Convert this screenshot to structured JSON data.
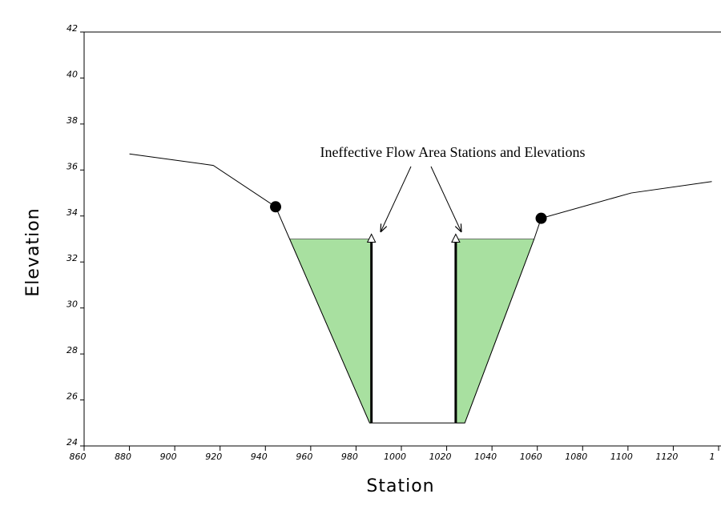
{
  "chart_data": {
    "type": "cross-section",
    "xlabel": "Station",
    "ylabel": "Elevation",
    "annotation": "Ineffective Flow Area Stations and Elevations",
    "xlim": [
      860,
      1140
    ],
    "ylim": [
      24,
      42
    ],
    "xticks": [
      860,
      880,
      900,
      920,
      940,
      960,
      980,
      1000,
      1020,
      1040,
      1060,
      1080,
      1100,
      1120,
      {
        "value": 1140,
        "label": "1"
      }
    ],
    "yticks": [
      24,
      26,
      28,
      30,
      32,
      34,
      36,
      38,
      40,
      42
    ],
    "ground": {
      "color": "#000000",
      "x": [
        880,
        917,
        944.5,
        950.7,
        986,
        1028,
        1058.6,
        1061.7,
        1101.4,
        1137
      ],
      "values": [
        36.7,
        36.2,
        34.4,
        33.0,
        25.0,
        25.0,
        33.0,
        33.9,
        35.0,
        35.5
      ]
    },
    "bank_stations": {
      "x": [
        944.5,
        1061.7
      ],
      "values": [
        34.4,
        33.9
      ]
    },
    "ineffective": {
      "color": "#a8e0a0",
      "x": [
        986.8,
        1024
      ],
      "values": [
        33.0,
        33.0
      ]
    }
  }
}
